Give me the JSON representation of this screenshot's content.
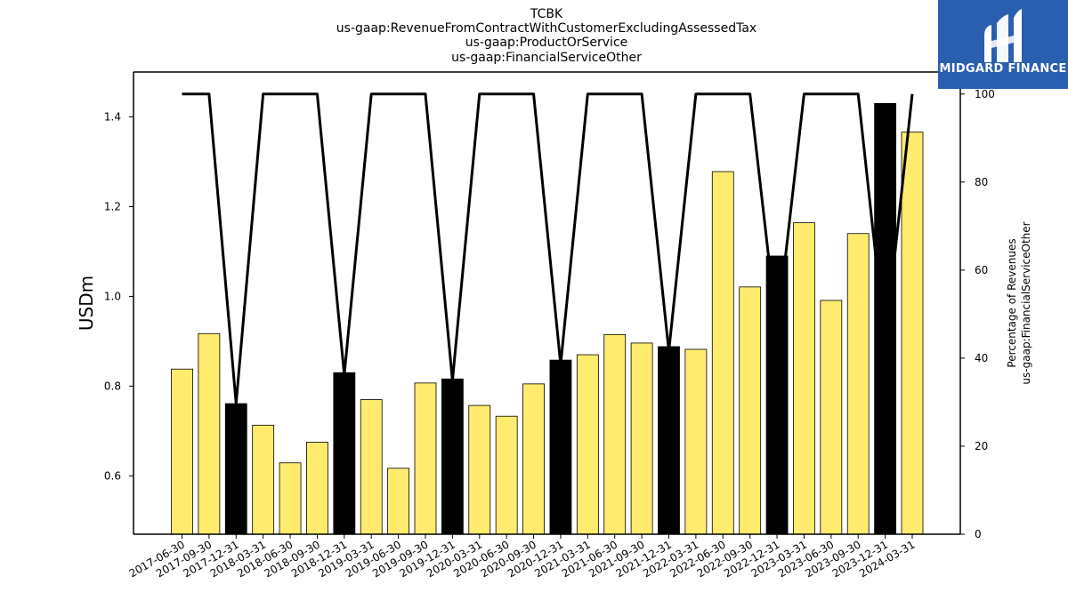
{
  "logo": {
    "text": "MIDGARD FINANCE",
    "background": "#2a5fb0"
  },
  "chart_data": {
    "type": "bar",
    "title_lines": [
      "TCBK",
      "us-gaap:RevenueFromContractWithCustomerExcludingAssessedTax",
      "us-gaap:ProductOrService",
      "us-gaap:FinancialServiceOther"
    ],
    "ylabel": "USDm",
    "ylabel_right_lines": [
      "Percentage of Revenues",
      "us-gaap:FinancialServiceOther"
    ],
    "ylim": [
      0.47,
      1.5
    ],
    "ylim_right": [
      0,
      105
    ],
    "yticks": [
      0.6,
      0.8,
      1.0,
      1.2,
      1.4
    ],
    "ytick_labels": [
      "0.6",
      "0.8",
      "1.0",
      "1.2",
      "1.4"
    ],
    "yticks_right": [
      0,
      20,
      40,
      60,
      80,
      100
    ],
    "ytick_labels_right": [
      "0",
      "20",
      "40",
      "60",
      "80",
      "100"
    ],
    "categories": [
      "2017-06-30",
      "2017-09-30",
      "2017-12-31",
      "2018-03-31",
      "2018-06-30",
      "2018-09-30",
      "2018-12-31",
      "2019-03-31",
      "2019-06-30",
      "2019-09-30",
      "2019-12-31",
      "2020-03-31",
      "2020-06-30",
      "2020-09-30",
      "2020-12-31",
      "2021-03-31",
      "2021-06-30",
      "2021-09-30",
      "2021-12-31",
      "2022-03-31",
      "2022-06-30",
      "2022-09-30",
      "2022-12-31",
      "2023-03-31",
      "2023-06-30",
      "2023-09-30",
      "2023-12-31",
      "2024-03-31"
    ],
    "bar_values": [
      0.838,
      0.917,
      0.761,
      0.713,
      0.629,
      0.675,
      0.83,
      0.77,
      0.617,
      0.807,
      0.816,
      0.757,
      0.733,
      0.805,
      0.858,
      0.87,
      0.915,
      0.896,
      0.888,
      0.882,
      1.278,
      1.021,
      1.09,
      1.164,
      0.991,
      1.14,
      1.43,
      1.366
    ],
    "bar_colors": [
      "#ffec6e",
      "#ffec6e",
      "#000000",
      "#ffec6e",
      "#ffec6e",
      "#ffec6e",
      "#000000",
      "#ffec6e",
      "#ffec6e",
      "#ffec6e",
      "#000000",
      "#ffec6e",
      "#ffec6e",
      "#ffec6e",
      "#000000",
      "#ffec6e",
      "#ffec6e",
      "#ffec6e",
      "#000000",
      "#ffec6e",
      "#ffec6e",
      "#ffec6e",
      "#000000",
      "#ffec6e",
      "#ffec6e",
      "#ffec6e",
      "#000000",
      "#ffec6e"
    ],
    "line_values": [
      100,
      100,
      29.7,
      100,
      100,
      100,
      36.2,
      100,
      100,
      100,
      34.9,
      100,
      100,
      100,
      38.6,
      100,
      100,
      100,
      41.6,
      100,
      100,
      100,
      46.3,
      100,
      100,
      100,
      43.4,
      100
    ],
    "line_color": "#000000",
    "grid": false
  }
}
